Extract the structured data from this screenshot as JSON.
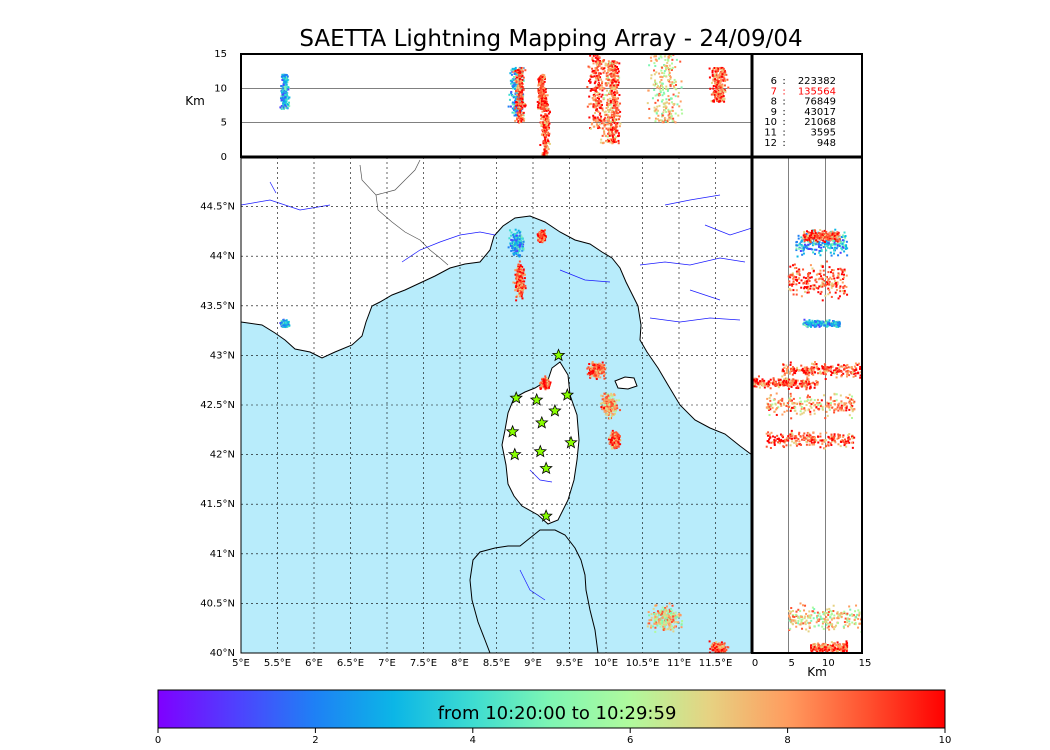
{
  "chart_data": {
    "type": "scatter",
    "title": "SAETTA Lightning Mapping Array - 24/09/04",
    "map": {
      "xlim": [
        5,
        12
      ],
      "ylim": [
        40,
        45
      ],
      "x_ticks": [
        "5°E",
        "5.5°E",
        "6°E",
        "6.5°E",
        "7°E",
        "7.5°E",
        "8°E",
        "8.5°E",
        "9°E",
        "9.5°E",
        "10°E",
        "10.5°E",
        "11°E",
        "11.5°E"
      ],
      "x_tick_values": [
        5,
        5.5,
        6,
        6.5,
        7,
        7.5,
        8,
        8.5,
        9,
        9.5,
        10,
        10.5,
        11,
        11.5
      ],
      "y_ticks": [
        "40°N",
        "40.5°N",
        "41°N",
        "41.5°N",
        "42°N",
        "42.5°N",
        "43°N",
        "43.5°N",
        "44°N",
        "44.5°N"
      ],
      "y_tick_values": [
        40,
        40.5,
        41,
        41.5,
        42,
        42.5,
        43,
        43.5,
        44,
        44.5
      ],
      "grid": "dotted"
    },
    "altitude_panel": {
      "ylabel": "Km",
      "ylim": [
        0,
        15
      ],
      "y_ticks": [
        "0",
        "5",
        "10",
        "15"
      ],
      "y_tick_values": [
        0,
        5,
        10,
        15
      ]
    },
    "side_panel": {
      "xlabel": "Km",
      "xlim": [
        0,
        15
      ],
      "x_ticks": [
        "0",
        "5",
        "10",
        "15"
      ],
      "x_tick_values": [
        0,
        5,
        10,
        15
      ]
    },
    "station_counts": [
      {
        "station": "6",
        "count": "223382",
        "highlight": false
      },
      {
        "station": "7",
        "count": "135564",
        "highlight": true
      },
      {
        "station": "8",
        "count": "76849",
        "highlight": false
      },
      {
        "station": "9",
        "count": "43017",
        "highlight": false
      },
      {
        "station": "10",
        "count": "21068",
        "highlight": false
      },
      {
        "station": "11",
        "count": "3595",
        "highlight": false
      },
      {
        "station": "12",
        "count": "948",
        "highlight": false
      }
    ],
    "stations": [
      {
        "lon": 9.35,
        "lat": 43.0
      },
      {
        "lon": 8.77,
        "lat": 42.57
      },
      {
        "lon": 9.05,
        "lat": 42.55
      },
      {
        "lon": 9.47,
        "lat": 42.6
      },
      {
        "lon": 9.3,
        "lat": 42.44
      },
      {
        "lon": 9.12,
        "lat": 42.32
      },
      {
        "lon": 8.72,
        "lat": 42.23
      },
      {
        "lon": 9.52,
        "lat": 42.12
      },
      {
        "lon": 9.1,
        "lat": 42.03
      },
      {
        "lon": 8.75,
        "lat": 42.0
      },
      {
        "lon": 9.18,
        "lat": 41.86
      },
      {
        "lon": 9.18,
        "lat": 41.38
      }
    ],
    "sources": [
      {
        "lon": 8.78,
        "lat": 44.12,
        "slon": 0.08,
        "slat": 0.1,
        "zmin": 6,
        "zmax": 13,
        "time": 3
      },
      {
        "lon": 9.12,
        "lat": 44.2,
        "slon": 0.05,
        "slat": 0.05,
        "zmin": 7,
        "zmax": 12,
        "time": 9
      },
      {
        "lon": 8.82,
        "lat": 43.75,
        "slon": 0.06,
        "slat": 0.15,
        "zmin": 5,
        "zmax": 13,
        "time": 9
      },
      {
        "lon": 5.6,
        "lat": 43.32,
        "slon": 0.05,
        "slat": 0.03,
        "zmin": 7,
        "zmax": 12,
        "time": 3
      },
      {
        "lon": 9.88,
        "lat": 42.85,
        "slon": 0.1,
        "slat": 0.07,
        "zmin": 4,
        "zmax": 15,
        "time": 9
      },
      {
        "lon": 10.05,
        "lat": 42.5,
        "slon": 0.1,
        "slat": 0.1,
        "zmin": 2,
        "zmax": 14,
        "time": 8
      },
      {
        "lon": 10.12,
        "lat": 42.15,
        "slon": 0.06,
        "slat": 0.07,
        "zmin": 2,
        "zmax": 14,
        "time": 9
      },
      {
        "lon": 9.17,
        "lat": 42.72,
        "slon": 0.05,
        "slat": 0.05,
        "zmin": 0,
        "zmax": 9,
        "time": 9
      },
      {
        "lon": 10.8,
        "lat": 40.35,
        "slon": 0.2,
        "slat": 0.12,
        "zmin": 5,
        "zmax": 15,
        "time": 7
      },
      {
        "lon": 11.55,
        "lat": 40.05,
        "slon": 0.1,
        "slat": 0.05,
        "zmin": 8,
        "zmax": 13,
        "time": 9
      }
    ],
    "colorbar": {
      "label": "from 10:20:00 to 10:29:59",
      "range": [
        0,
        10
      ],
      "ticks": [
        "0",
        "2",
        "4",
        "6",
        "8",
        "10"
      ],
      "tick_values": [
        0,
        2,
        4,
        6,
        8,
        10
      ]
    },
    "colors": {
      "sea": "#b8ecfb",
      "coast": "#000000",
      "rivers": "#1a1aff",
      "borders": "#555555",
      "station_fill": "#88ff00"
    }
  }
}
